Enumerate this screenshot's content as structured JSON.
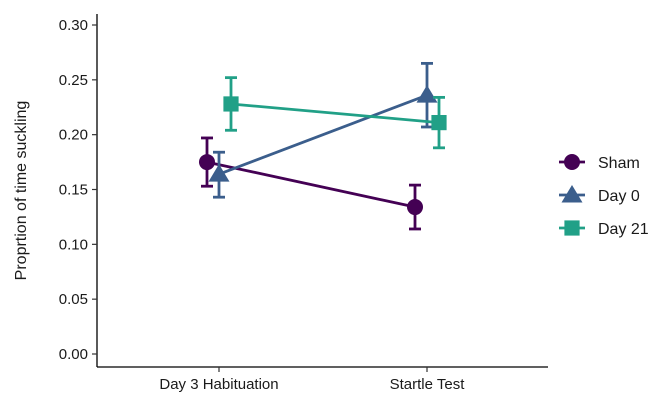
{
  "chart_data": {
    "type": "line",
    "title": "",
    "xlabel": "",
    "ylabel": "Proprtion of time suckling",
    "categories": [
      "Day 3 Habituation",
      "Startle Test"
    ],
    "ylim": [
      0,
      0.3
    ],
    "yticks": [
      "0.00",
      "0.05",
      "0.10",
      "0.15",
      "0.20",
      "0.25",
      "0.30"
    ],
    "grid": false,
    "legend_position": "right",
    "series": [
      {
        "name": "Sham",
        "marker": "circle",
        "color": "#440154",
        "values": [
          0.175,
          0.134
        ],
        "lower": [
          0.153,
          0.114
        ],
        "upper": [
          0.197,
          0.154
        ]
      },
      {
        "name": "Day 0",
        "marker": "triangle",
        "color": "#3b5e8c",
        "values": [
          0.164,
          0.236
        ],
        "lower": [
          0.143,
          0.207
        ],
        "upper": [
          0.184,
          0.265
        ]
      },
      {
        "name": "Day 21",
        "marker": "square",
        "color": "#21a087",
        "values": [
          0.228,
          0.211
        ],
        "lower": [
          0.204,
          0.188
        ],
        "upper": [
          0.252,
          0.234
        ]
      }
    ]
  }
}
